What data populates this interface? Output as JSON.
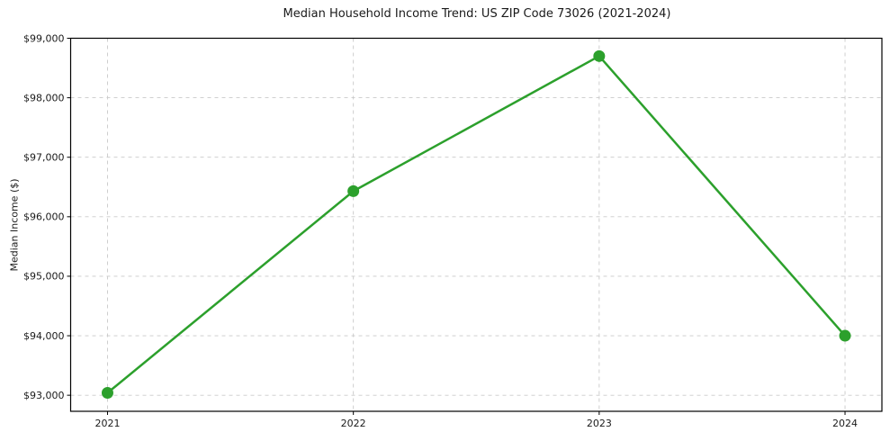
{
  "page": {
    "background": "#ffffff"
  },
  "chart_data": {
    "type": "line",
    "title": "Median Household Income Trend: US ZIP Code 73026 (2021-2024)",
    "ylabel": "Median Income ($)",
    "xlabel": "",
    "categories": [
      "2021",
      "2022",
      "2023",
      "2024"
    ],
    "series": [
      {
        "values": [
          93040,
          96430,
          98700,
          94000
        ],
        "color": "#2ca02c",
        "marker": "circle"
      }
    ],
    "y_ticks": [
      {
        "value": 99000,
        "label": "$99,000"
      },
      {
        "value": 98000,
        "label": "$98,000"
      },
      {
        "value": 97000,
        "label": "$97,000"
      },
      {
        "value": 96000,
        "label": "$96,000"
      },
      {
        "value": 95000,
        "label": "$95,000"
      },
      {
        "value": 94000,
        "label": "$94,000"
      },
      {
        "value": 93000,
        "label": "$93,000"
      }
    ],
    "ylim": [
      92730,
      99000
    ],
    "x_margin": 0.15,
    "grid": {
      "show": true,
      "style": "dashed",
      "color": "#c9c9c9"
    },
    "axis_color": "#000000",
    "text_color": "#1a1a1a",
    "legend": "none"
  }
}
